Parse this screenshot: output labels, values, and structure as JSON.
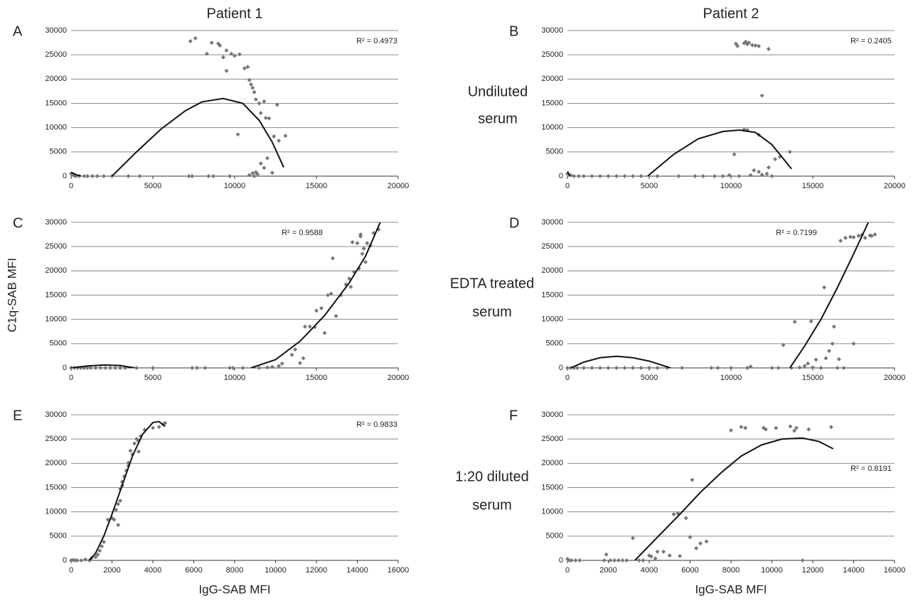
{
  "column_labels": [
    "Patient 1",
    "Patient 2"
  ],
  "row_labels": [
    [
      "Undiluted",
      "serum"
    ],
    [
      "EDTA treated",
      "serum"
    ],
    [
      "1:20 diluted",
      "serum"
    ]
  ],
  "chart_data": [
    {
      "type": "scatter",
      "title": "A",
      "annotation": "R² = 0.4973",
      "color": "#777777",
      "x": [
        0,
        100,
        200,
        300,
        500,
        800,
        1000,
        1300,
        1600,
        2000,
        2500,
        3500,
        4200,
        7200,
        7400,
        8400,
        8700,
        9700,
        7300,
        7600,
        8300,
        8600,
        9000,
        9100,
        9300,
        9500,
        9500,
        9800,
        10000,
        10300,
        10600,
        10800,
        10900,
        11000,
        11100,
        11200,
        11300,
        11500,
        11800,
        11600,
        11900,
        12100,
        12400,
        12600,
        12700,
        13100,
        10200,
        10900,
        11100,
        11300,
        11400,
        11600,
        11800,
        12000,
        12300,
        11200
      ],
      "y": [
        500,
        300,
        100,
        0,
        0,
        0,
        0,
        0,
        0,
        0,
        0,
        0,
        0,
        0,
        0,
        0,
        0,
        0,
        27800,
        28400,
        25200,
        27500,
        27300,
        26900,
        24500,
        25900,
        21700,
        25200,
        24800,
        25100,
        22200,
        22500,
        19800,
        18900,
        18200,
        17300,
        15800,
        15000,
        15400,
        13000,
        12000,
        11900,
        8200,
        14700,
        7300,
        8300,
        8600,
        200,
        600,
        800,
        400,
        2600,
        1700,
        3700,
        700,
        0
      ],
      "trend": {
        "x": [
          0,
          300,
          600,
          null,
          2500,
          4000,
          5500,
          7000,
          8000,
          9300,
          10500,
          11500,
          12300,
          13000
        ],
        "y": [
          800,
          300,
          0,
          null,
          0,
          5000,
          9700,
          13500,
          15300,
          16000,
          15000,
          11500,
          7000,
          1800
        ]
      },
      "xlim": [
        0,
        20000
      ],
      "xticks": [
        0,
        5000,
        10000,
        15000,
        20000
      ],
      "ylim": [
        0,
        30000
      ],
      "yticks": [
        0,
        5000,
        10000,
        15000,
        20000,
        25000,
        30000
      ],
      "grid": true
    },
    {
      "type": "scatter",
      "title": "B",
      "annotation": "R² = 0.2405",
      "color": "#777777",
      "x": [
        0,
        200,
        400,
        700,
        1000,
        1500,
        2000,
        2500,
        3000,
        3500,
        4000,
        4500,
        5500,
        6800,
        7800,
        8300,
        9000,
        9500,
        9900,
        10200,
        10800,
        11000,
        10500,
        11200,
        11400,
        11700,
        11900,
        12200,
        12500,
        12300,
        12700,
        13000,
        13600,
        11700,
        10300,
        10400,
        10800,
        10900,
        11000,
        11100,
        11300,
        11500,
        11700,
        12300,
        11900
      ],
      "y": [
        500,
        200,
        0,
        0,
        0,
        0,
        0,
        0,
        0,
        0,
        0,
        0,
        0,
        0,
        0,
        0,
        0,
        0,
        200,
        4500,
        9600,
        9500,
        0,
        200,
        1200,
        900,
        300,
        500,
        0,
        1800,
        3500,
        4000,
        5000,
        8500,
        27300,
        26800,
        27400,
        27700,
        27200,
        27500,
        27000,
        26900,
        26800,
        26200,
        16600
      ],
      "trend": {
        "x": [
          0,
          150,
          null,
          4900,
          6500,
          8000,
          9500,
          10500,
          11500,
          12500,
          13700
        ],
        "y": [
          1000,
          0,
          null,
          0,
          4500,
          7700,
          9200,
          9500,
          9000,
          6500,
          1500
        ]
      },
      "xlim": [
        0,
        20000
      ],
      "xticks": [
        0,
        5000,
        10000,
        15000,
        20000
      ],
      "ylim": [
        0,
        30000
      ],
      "yticks": [
        0,
        5000,
        10000,
        15000,
        20000,
        25000,
        30000
      ],
      "grid": true
    },
    {
      "type": "scatter",
      "title": "C",
      "annotation": "R² = 0.9588",
      "ylabel": "C1q-SAB MFI",
      "color": "#777777",
      "x": [
        0,
        200,
        400,
        600,
        800,
        1000,
        1200,
        1500,
        1800,
        2100,
        2400,
        2700,
        3000,
        3300,
        4000,
        5000,
        7400,
        7700,
        8200,
        9700,
        9900,
        10500,
        11500,
        12000,
        12300,
        12700,
        12900,
        13500,
        13700,
        14200,
        14000,
        14300,
        14600,
        14900,
        15000,
        15300,
        15500,
        15700,
        15900,
        16000,
        16200,
        16500,
        16800,
        17000,
        17100,
        17300,
        17500,
        17600,
        17700,
        17700,
        17800,
        17900,
        18000,
        18100,
        18300,
        18500,
        18800,
        17200
      ],
      "y": [
        0,
        0,
        0,
        0,
        0,
        0,
        0,
        0,
        0,
        0,
        0,
        0,
        0,
        0,
        0,
        0,
        0,
        0,
        0,
        0,
        0,
        0,
        0,
        100,
        200,
        400,
        900,
        2700,
        3800,
        2000,
        1000,
        8500,
        8500,
        8400,
        11800,
        12300,
        7200,
        15000,
        15300,
        22600,
        10700,
        15000,
        17200,
        18400,
        16700,
        19800,
        25700,
        20500,
        27100,
        27500,
        23500,
        24600,
        21800,
        25700,
        25200,
        27800,
        28500,
        25900
      ],
      "trend": {
        "x": [
          0,
          1000,
          2000,
          3000,
          3900,
          null,
          11000,
          12500,
          14000,
          15500,
          17000,
          18000,
          18900
        ],
        "y": [
          0,
          400,
          600,
          500,
          0,
          null,
          0,
          1700,
          5500,
          10800,
          17500,
          23000,
          30000
        ]
      },
      "xlim": [
        0,
        20000
      ],
      "xticks": [
        0,
        5000,
        10000,
        15000,
        20000
      ],
      "ylim": [
        0,
        30000
      ],
      "yticks": [
        0,
        5000,
        10000,
        15000,
        20000,
        25000,
        30000
      ],
      "grid": true
    },
    {
      "type": "scatter",
      "title": "D",
      "annotation": "R² = 0.7199",
      "color": "#777777",
      "x": [
        0,
        200,
        400,
        600,
        1000,
        1500,
        2000,
        2500,
        3000,
        3500,
        4000,
        4500,
        5000,
        5500,
        6100,
        7000,
        8800,
        9200,
        10000,
        11000,
        11200,
        12500,
        12900,
        13200,
        13700,
        13900,
        14200,
        14500,
        14700,
        14900,
        15000,
        15200,
        15500,
        15700,
        15800,
        16000,
        16200,
        16300,
        16500,
        16600,
        16900,
        17500,
        16700,
        17000,
        17300,
        17500,
        17800,
        18000,
        18200,
        18500,
        18800,
        18600
      ],
      "y": [
        0,
        0,
        0,
        0,
        0,
        0,
        0,
        0,
        0,
        0,
        0,
        0,
        0,
        0,
        0,
        0,
        0,
        0,
        0,
        0,
        300,
        0,
        0,
        4700,
        0,
        9500,
        100,
        400,
        900,
        9600,
        100,
        1700,
        0,
        16600,
        2000,
        3500,
        5000,
        8500,
        0,
        1800,
        0,
        5000,
        26200,
        26800,
        27000,
        26900,
        27200,
        27400,
        26800,
        27300,
        27500,
        27200
      ],
      "trend": {
        "x": [
          200,
          1000,
          2000,
          3000,
          4000,
          5000,
          6300,
          null,
          13600,
          14500,
          15500,
          16500,
          17500,
          18400
        ],
        "y": [
          0,
          1200,
          2100,
          2400,
          2100,
          1400,
          0,
          null,
          0,
          4500,
          10000,
          16500,
          23500,
          30000
        ]
      },
      "xlim": [
        0,
        20000
      ],
      "xticks": [
        0,
        5000,
        10000,
        15000,
        20000
      ],
      "ylim": [
        0,
        30000
      ],
      "yticks": [
        0,
        5000,
        10000,
        15000,
        20000,
        25000,
        30000
      ],
      "grid": true
    },
    {
      "type": "scatter",
      "title": "E",
      "annotation": "R² = 0.9833",
      "xlabel": "IgG-SAB MFI",
      "color": "#777777",
      "x": [
        0,
        100,
        200,
        300,
        500,
        700,
        900,
        1000,
        1200,
        1300,
        1400,
        1500,
        1600,
        1800,
        2000,
        2100,
        2200,
        2300,
        2300,
        2400,
        2400,
        2500,
        2500,
        2600,
        2700,
        2800,
        2800,
        2900,
        3000,
        3100,
        3200,
        3300,
        3400,
        3300,
        3600,
        4000,
        4300,
        4500,
        4600
      ],
      "y": [
        0,
        100,
        0,
        0,
        0,
        200,
        0,
        500,
        700,
        1200,
        2000,
        2900,
        3800,
        8400,
        8700,
        8400,
        10400,
        7300,
        11600,
        12300,
        14700,
        15400,
        16200,
        17300,
        18500,
        19500,
        20100,
        22600,
        21800,
        24100,
        25000,
        24600,
        25600,
        22400,
        26900,
        27300,
        27500,
        28000,
        28300
      ],
      "trend": {
        "x": [
          900,
          1200,
          1600,
          2000,
          2500,
          3000,
          3500,
          4000,
          4300,
          4600
        ],
        "y": [
          0,
          1500,
          5000,
          9500,
          15500,
          21500,
          26000,
          28400,
          28600,
          27600
        ]
      },
      "xlim": [
        0,
        16000
      ],
      "xticks": [
        0,
        2000,
        4000,
        6000,
        8000,
        10000,
        12000,
        14000,
        16000
      ],
      "ylim": [
        0,
        30000
      ],
      "yticks": [
        0,
        5000,
        10000,
        15000,
        20000,
        25000,
        30000
      ],
      "grid": true
    },
    {
      "type": "scatter",
      "title": "F",
      "annotation": "R² = 0.8191",
      "xlabel": "IgG-SAB MFI",
      "color": "#777777",
      "x": [
        0,
        100,
        200,
        400,
        600,
        1800,
        1900,
        2100,
        2300,
        2500,
        2700,
        2900,
        3200,
        3500,
        3700,
        4000,
        4100,
        4300,
        4400,
        4700,
        5000,
        5200,
        5400,
        5500,
        5800,
        6000,
        6100,
        6300,
        6500,
        6800,
        8000,
        8500,
        8700,
        9600,
        9700,
        10200,
        10900,
        11100,
        11200,
        11500,
        11800,
        12900
      ],
      "y": [
        300,
        0,
        0,
        0,
        0,
        0,
        1200,
        0,
        0,
        0,
        0,
        0,
        4600,
        0,
        0,
        1000,
        800,
        400,
        1800,
        1800,
        1000,
        9500,
        9700,
        900,
        8700,
        4800,
        16600,
        2500,
        3500,
        3900,
        26800,
        27500,
        27300,
        27300,
        27000,
        27300,
        27600,
        26700,
        27300,
        0,
        27000,
        27500
      ],
      "trend": {
        "x": [
          3300,
          4500,
          5500,
          6500,
          7500,
          8500,
          9500,
          10500,
          11500,
          12300,
          13000
        ],
        "y": [
          0,
          5200,
          9500,
          14000,
          18000,
          21500,
          23800,
          25000,
          25200,
          24500,
          23000
        ]
      },
      "xlim": [
        0,
        16000
      ],
      "xticks": [
        0,
        2000,
        4000,
        6000,
        8000,
        10000,
        12000,
        14000,
        16000
      ],
      "ylim": [
        0,
        30000
      ],
      "yticks": [
        0,
        5000,
        10000,
        15000,
        20000,
        25000,
        30000
      ],
      "grid": true
    }
  ]
}
